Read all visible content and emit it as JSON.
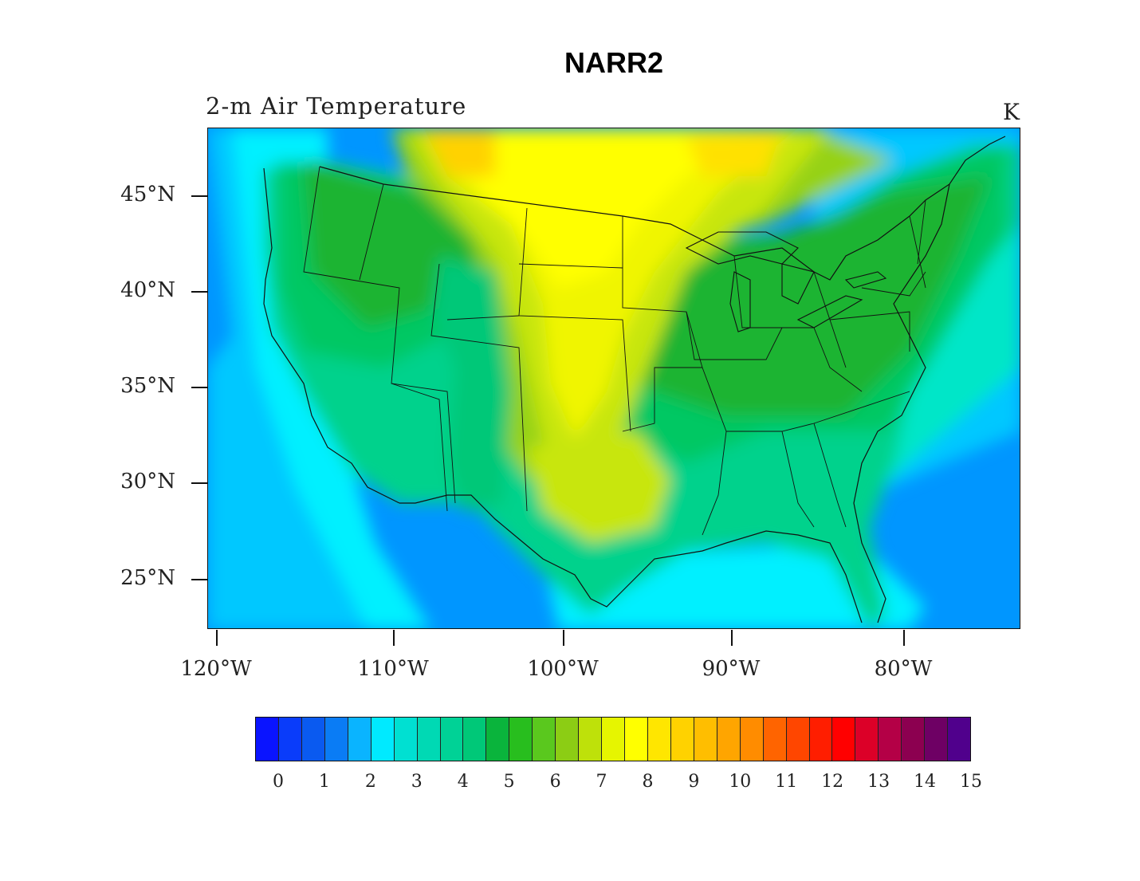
{
  "title": "NARR2",
  "subtitle": "2-m Air Temperature",
  "units": "K",
  "lat_ticks": [
    {
      "label": "45°N",
      "lat": 45
    },
    {
      "label": "40°N",
      "lat": 40
    },
    {
      "label": "35°N",
      "lat": 35
    },
    {
      "label": "30°N",
      "lat": 30
    },
    {
      "label": "25°N",
      "lat": 25
    }
  ],
  "lon_ticks": [
    {
      "label": "120°W",
      "lon": -120
    },
    {
      "label": "110°W",
      "lon": -110
    },
    {
      "label": "100°W",
      "lon": -100
    },
    {
      "label": "90°W",
      "lon": -90
    },
    {
      "label": "80°W",
      "lon": -80
    }
  ],
  "colorbar": {
    "labels": [
      "0",
      "1",
      "2",
      "3",
      "4",
      "5",
      "6",
      "7",
      "8",
      "9",
      "10",
      "11",
      "12",
      "13",
      "14",
      "15"
    ],
    "colors": [
      "#0a14ff",
      "#0a3cfa",
      "#0a5af0",
      "#0a7cf5",
      "#0ab4ff",
      "#00eaff",
      "#00e0d2",
      "#00d9b4",
      "#00d296",
      "#00c878",
      "#0ab43c",
      "#28be1e",
      "#5ac81e",
      "#8ccd14",
      "#bee10a",
      "#e6f500",
      "#ffff00",
      "#ffe600",
      "#ffd200",
      "#ffbe00",
      "#ffa500",
      "#ff8c00",
      "#ff6400",
      "#ff4600",
      "#ff1e00",
      "#ff0000",
      "#dc0028",
      "#b40046",
      "#8c0050",
      "#6e0064",
      "#50008c"
    ]
  }
}
